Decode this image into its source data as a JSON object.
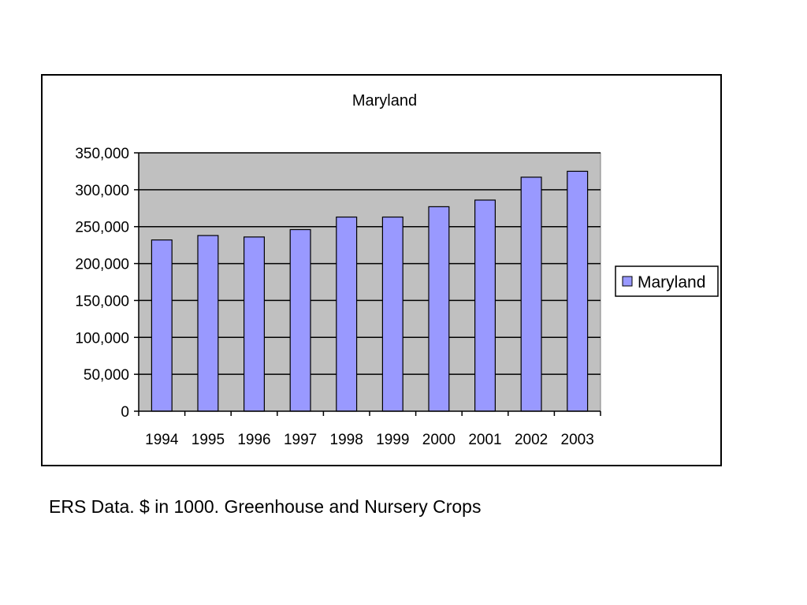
{
  "caption": "ERS Data. $ in 1000. Greenhouse and Nursery Crops",
  "colors": {
    "bar": "#9999ff",
    "plot_background": "#c0c0c0",
    "gridline": "#000000"
  },
  "chart_data": {
    "type": "bar",
    "title": "Maryland",
    "categories": [
      "1994",
      "1995",
      "1996",
      "1997",
      "1998",
      "1999",
      "2000",
      "2001",
      "2002",
      "2003"
    ],
    "series": [
      {
        "name": "Maryland",
        "values": [
          232000,
          238000,
          236000,
          246000,
          263000,
          263000,
          277000,
          286000,
          317000,
          325000
        ]
      }
    ],
    "ylim": [
      0,
      350000
    ],
    "y_ticks": [
      0,
      50000,
      100000,
      150000,
      200000,
      250000,
      300000,
      350000
    ],
    "y_tick_labels": [
      "0",
      "50,000",
      "100,000",
      "150,000",
      "200,000",
      "250,000",
      "300,000",
      "350,000"
    ],
    "grid": true,
    "legend": "right"
  }
}
